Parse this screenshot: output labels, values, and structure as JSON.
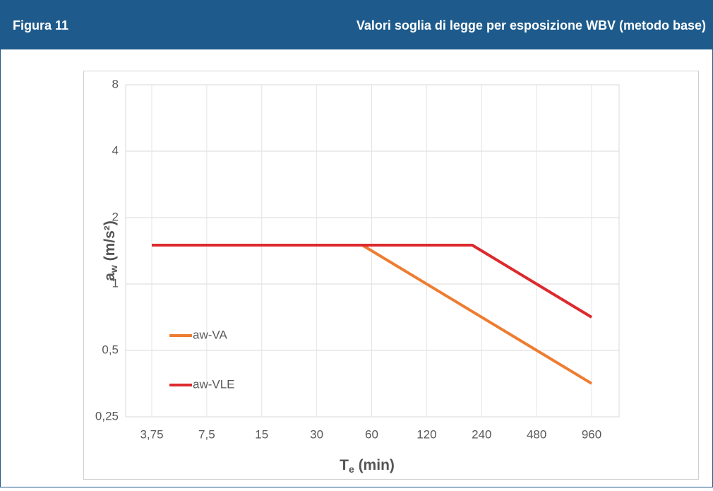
{
  "header": {
    "label": "Figura 11",
    "title": "Valori soglia di legge per esposizione WBV (metodo base)"
  },
  "chart_data": {
    "type": "line",
    "xlabel": {
      "main": "T",
      "sub": "e",
      "rest": " (min)"
    },
    "ylabel": {
      "main": "a",
      "sub": "w",
      "rest": " (m/s²)"
    },
    "xscale": "log",
    "yscale": "log",
    "xlim": [
      3.75,
      960
    ],
    "ylim": [
      0.25,
      8
    ],
    "xticks": [
      {
        "value": 3.75,
        "label": "3,75"
      },
      {
        "value": 7.5,
        "label": "7,5"
      },
      15,
      30,
      60,
      120,
      240,
      480,
      960
    ],
    "yticks": [
      {
        "value": 0.25,
        "label": "0,25"
      },
      {
        "value": 0.5,
        "label": "0,5"
      },
      1,
      2,
      4,
      8
    ],
    "grid": true,
    "legend": "left",
    "series": [
      {
        "name": "aw-VA",
        "color": "#ed7d31",
        "x": [
          3.75,
          53.33,
          960
        ],
        "values": [
          1.5,
          1.5,
          0.354
        ]
      },
      {
        "name": "aw-VLE",
        "color": "#dc2a2e",
        "x": [
          3.75,
          213.33,
          960
        ],
        "values": [
          1.5,
          1.5,
          0.707
        ]
      }
    ]
  }
}
